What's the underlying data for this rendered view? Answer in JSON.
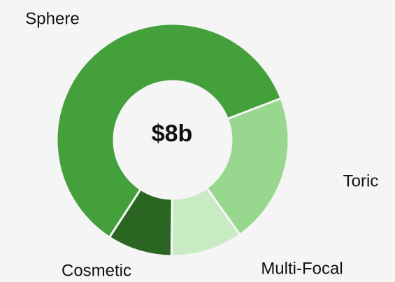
{
  "chart_data": {
    "type": "donut",
    "center_label": "$8b",
    "categories": [
      "Sphere",
      "Toric",
      "Multi-Focal",
      "Cosmetic"
    ],
    "values": [
      60,
      21,
      10,
      9
    ],
    "colors": [
      "#43a03a",
      "#98d88e",
      "#c9ebc4",
      "#2a6622"
    ]
  }
}
